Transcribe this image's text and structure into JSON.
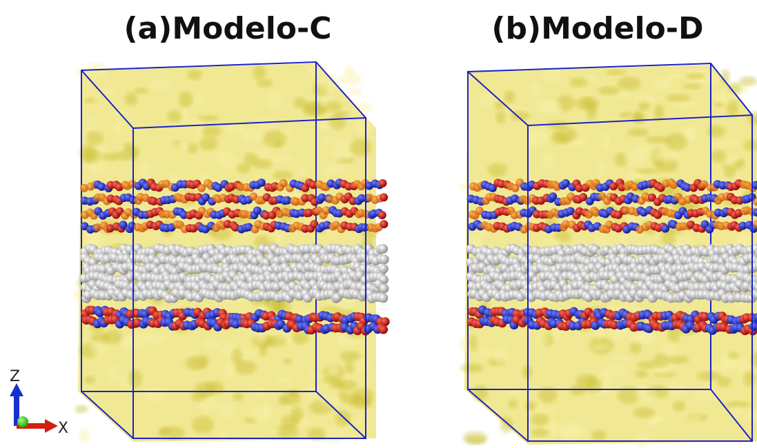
{
  "panels": [
    {
      "title": "(a)Modelo-C"
    },
    {
      "title": "(b)Modelo-D"
    }
  ],
  "axes": {
    "z": "Z",
    "x": "X"
  }
}
